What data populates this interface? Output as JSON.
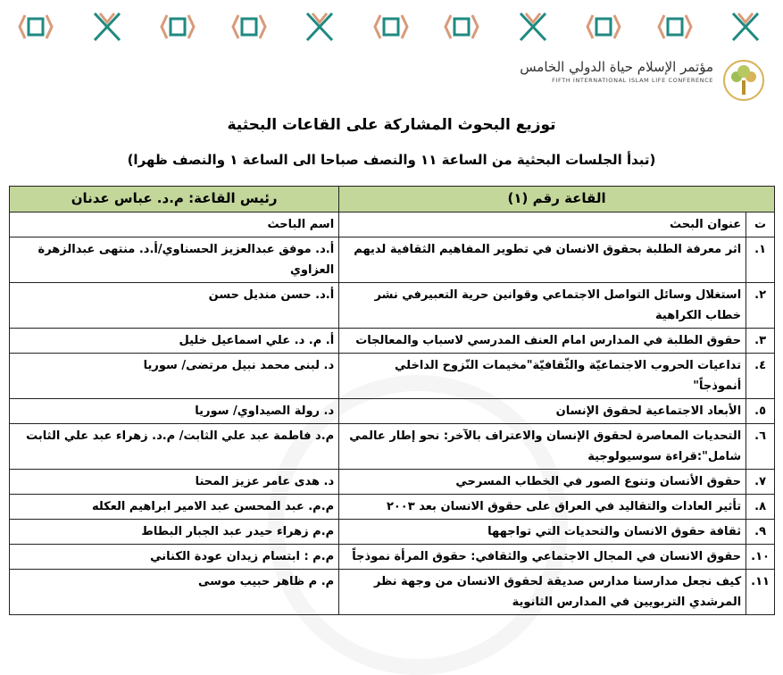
{
  "header": {
    "conference_ar": "مؤتمر الإسلام حياة الدولي الخامس",
    "conference_en": "FIFTH INTERNATIONAL ISLAM LIFE CONFERENCE",
    "logo_icon": "tree-logo-icon",
    "banner": "decorative-pattern"
  },
  "title": "توزيع البحوث المشاركة على القاعات البحثية",
  "subtitle": "(تبدأ الجلسات البحثية من الساعة ١١ والنصف صباحا الى الساعة ١ والنصف ظهرا)",
  "colors": {
    "header_bg": "#c4d79b",
    "teal": "#1f8a80",
    "salmon": "#d99a7a"
  },
  "table": {
    "hall": "القاعة رقم (١)",
    "chair": "رئيس القاعة: م.د. عباس عدنان",
    "col_num": "ت",
    "col_title": "عنوان البحث",
    "col_name": "اسم الباحث",
    "rows": [
      {
        "n": "١.",
        "title": "اثر معرفة الطلبة بحقوق الانسان في تطوير المفاهيم الثقافية لديهم",
        "name": "أ.د. موفق عبدالعزيز الحسناوي/أ.د. منتهى عبدالزهرة العزاوي"
      },
      {
        "n": "٢.",
        "title": "استغلال وسائل التواصل الاجتماعي وقوانين حرية التعبيرفي نشر خطاب الكراهية",
        "name": "أ.د. حسن منديل حسن"
      },
      {
        "n": "٣.",
        "title": "حقوق الطلبة في المدارس امام العنف المدرسي لاسباب والمعالجات",
        "name": "أ. م. د. علي اسماعيل خليل"
      },
      {
        "n": "٤.",
        "title": "تداعيات الحروب الاجتماعيّة والثّقافيّة\"مخيمات النّزوح الداخلي أنموذجاً\"",
        "name": "د. لبنى محمد نبيل مرتضى/ سوريا"
      },
      {
        "n": "٥.",
        "title": "الأبعاد الاجتماعية لحقوق الإنسان",
        "name": "د. رولة الصيداوي/ سوريا"
      },
      {
        "n": "٦.",
        "title": "التحديات المعاصرة لحقوق الإنسان والاعتراف بالآخر: نحو إطار عالمي شامل\":قراءة سوسيولوجية",
        "name": "م.د فاطمة عبد علي الثابت/ م.د. زهراء عبد علي الثابت"
      },
      {
        "n": "٧.",
        "title": "حقوق الأنسان وتنوع الصور  في الخطاب المسرحي",
        "name": "د. هدى عامر عزيز المحنا"
      },
      {
        "n": "٨.",
        "title": "تأثير العادات والتقاليد في العراق على حقوق الانسان بعد ٢٠٠٣",
        "name": "م.م. عبد المحسن عبد الامير ابراهيم العكله"
      },
      {
        "n": "٩.",
        "title": "ثقافة حقوق الانسان والتحديات التي تواجهها",
        "name": "م.م  زهراء حيدر عبد الجبار البطاط"
      },
      {
        "n": "١٠.",
        "title": "حقوق الانسان في المجال الاجتماعي والثقافي: حقوق المرأة نموذجاً",
        "name": "م.م : ابتسام زيدان عودة الكناني"
      },
      {
        "n": "١١.",
        "title": "كيف نجعل مدارسنا  مدارس صديقة لحقوق الانسان من وجهة نظر المرشدي التربويين في المدارس الثانوية",
        "name": "م. م ظاهر حبيب موسى"
      }
    ]
  }
}
